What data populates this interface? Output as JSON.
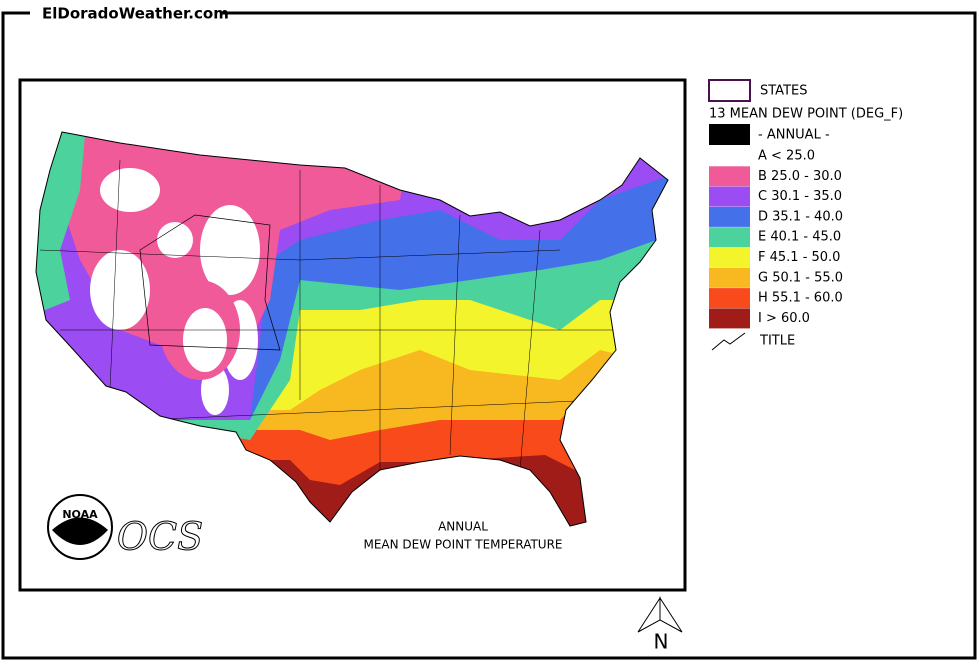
{
  "header": {
    "site": "ElDoradoWeather.com"
  },
  "legend": {
    "states": "STATES",
    "layer": "13 MEAN DEW POINT (DEG_F)",
    "period": "- ANNUAL -",
    "classes": [
      {
        "label": "A < 25.0",
        "color": "#ffffff"
      },
      {
        "label": "B 25.0 - 30.0",
        "color": "#f05a98"
      },
      {
        "label": "C 30.1 - 35.0",
        "color": "#9b4cf2"
      },
      {
        "label": "D 35.1 - 40.0",
        "color": "#4470ea"
      },
      {
        "label": "E 40.1 - 45.0",
        "color": "#4cd29c"
      },
      {
        "label": "F 45.1 - 50.0",
        "color": "#f4f42c"
      },
      {
        "label": "G 50.1 - 55.0",
        "color": "#f8b820"
      },
      {
        "label": "H 55.1 - 60.0",
        "color": "#f84a1a"
      },
      {
        "label": "I > 60.0",
        "color": "#a01c18"
      }
    ],
    "title": "TITLE"
  },
  "map": {
    "title_lines": [
      "ANNUAL",
      "MEAN DEW POINT TEMPERATURE"
    ],
    "logo": "NOAA",
    "agency": "OCS",
    "north": "N"
  }
}
